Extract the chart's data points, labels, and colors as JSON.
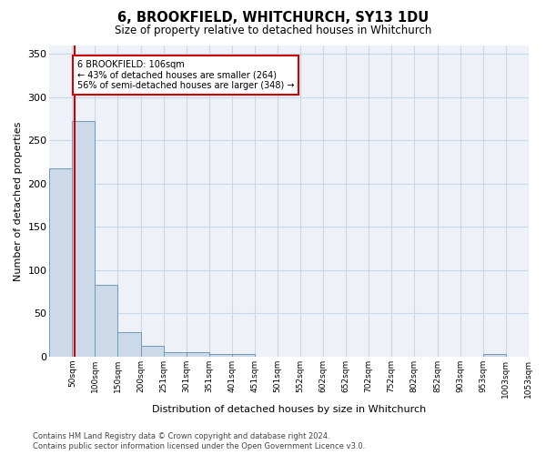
{
  "title": "6, BROOKFIELD, WHITCHURCH, SY13 1DU",
  "subtitle": "Size of property relative to detached houses in Whitchurch",
  "xlabel": "Distribution of detached houses by size in Whitchurch",
  "ylabel": "Number of detached properties",
  "bar_color": "#ccd9e8",
  "bar_edge_color": "#7098b8",
  "grid_color": "#c8d8ea",
  "annotation_box_color": "#cc0000",
  "annotation_line_color": "#cc0000",
  "property_line_x": 106,
  "annotation_text": "6 BROOKFIELD: 106sqm\n← 43% of detached houses are smaller (264)\n56% of semi-detached houses are larger (348) →",
  "categories": [
    "50sqm",
    "100sqm",
    "150sqm",
    "200sqm",
    "251sqm",
    "301sqm",
    "351sqm",
    "401sqm",
    "451sqm",
    "501sqm",
    "552sqm",
    "602sqm",
    "652sqm",
    "702sqm",
    "752sqm",
    "802sqm",
    "852sqm",
    "903sqm",
    "953sqm",
    "1003sqm",
    "1053sqm"
  ],
  "bin_edges": [
    50,
    100,
    150,
    200,
    251,
    301,
    351,
    401,
    451,
    501,
    552,
    602,
    652,
    702,
    752,
    802,
    852,
    903,
    953,
    1003,
    1053,
    1103
  ],
  "values": [
    218,
    273,
    83,
    28,
    12,
    5,
    5,
    3,
    3,
    0,
    0,
    0,
    0,
    0,
    0,
    0,
    0,
    0,
    0,
    3,
    0
  ],
  "ylim": [
    0,
    360
  ],
  "yticks": [
    0,
    50,
    100,
    150,
    200,
    250,
    300,
    350
  ],
  "footer_line1": "Contains HM Land Registry data © Crown copyright and database right 2024.",
  "footer_line2": "Contains public sector information licensed under the Open Government Licence v3.0.",
  "bg_color": "#eef2f8"
}
